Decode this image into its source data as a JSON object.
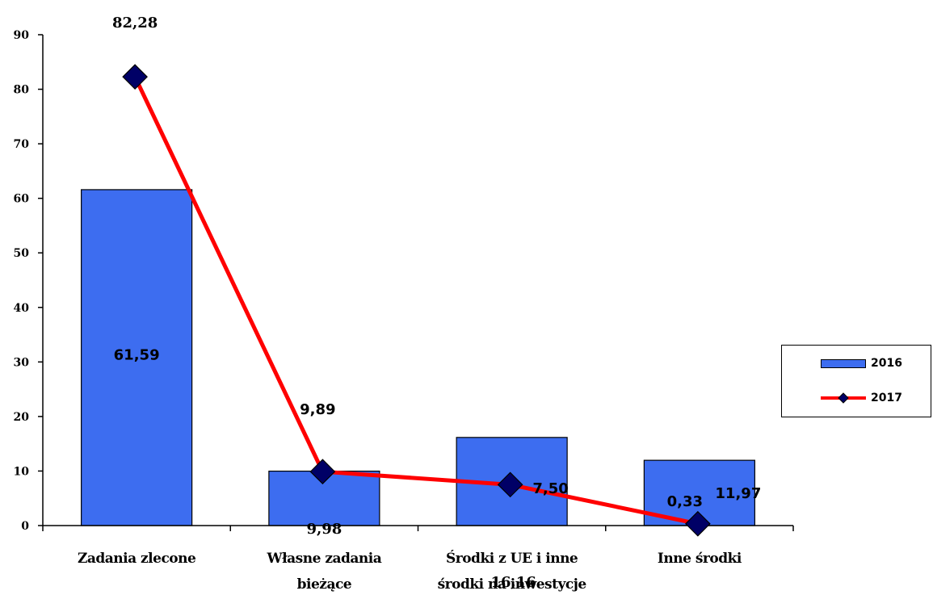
{
  "chart_data": {
    "type": "bar",
    "categories": [
      [
        "Zadania zlecone"
      ],
      [
        "Własne zadania",
        "bieżące"
      ],
      [
        "Środki z UE i inne",
        "środki na inwestycje"
      ],
      [
        "Inne środki"
      ]
    ],
    "ylim": [
      0,
      90
    ],
    "yticks": [
      0,
      10,
      20,
      30,
      40,
      50,
      60,
      70,
      80,
      90
    ],
    "series": [
      {
        "name": "2016",
        "kind": "bar",
        "color": "#3d6df0",
        "values": [
          61.59,
          9.98,
          16.16,
          11.97
        ],
        "labels": [
          "61,59",
          "9,98",
          "16,16",
          "11,97"
        ]
      },
      {
        "name": "2017",
        "kind": "line",
        "color": "#ff0000",
        "marker_color": "#000066",
        "values": [
          82.28,
          9.89,
          7.5,
          0.33
        ],
        "labels": [
          "82,28",
          "9,89",
          "7,50",
          "0,33"
        ]
      }
    ],
    "legend_position": "right",
    "grid": false
  }
}
